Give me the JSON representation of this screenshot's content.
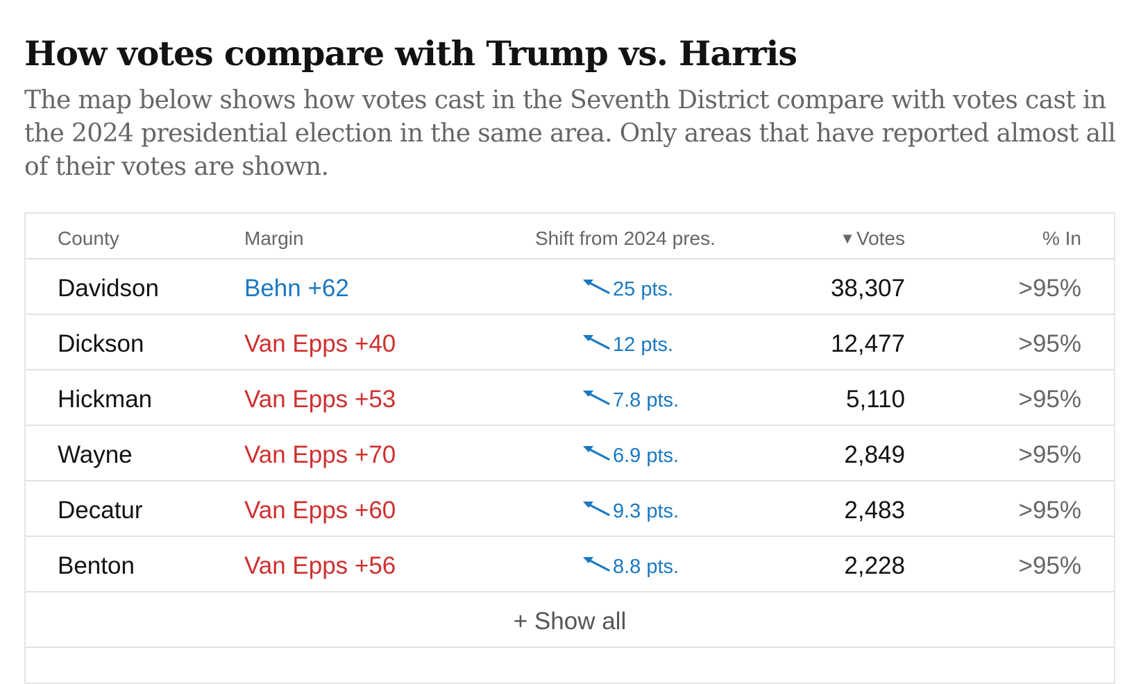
{
  "headline": "How votes compare with Trump vs. Harris",
  "dek": "The map below shows how votes cast in the Seventh District compare with votes cast in the 2024 presidential election in the same area. Only areas that have reported almost all of their votes are shown.",
  "table": {
    "headers": {
      "county": "County",
      "margin": "Margin",
      "shift": "Shift from 2024 pres.",
      "votes_sort_icon": "▼",
      "votes": "Votes",
      "pct_in": "% In"
    },
    "rows": [
      {
        "county": "Davidson",
        "margin": "Behn +62",
        "party": "dem",
        "shift": "25 pts.",
        "votes": "38,307",
        "pct_in": ">95%"
      },
      {
        "county": "Dickson",
        "margin": "Van Epps +40",
        "party": "rep",
        "shift": "12 pts.",
        "votes": "12,477",
        "pct_in": ">95%"
      },
      {
        "county": "Hickman",
        "margin": "Van Epps +53",
        "party": "rep",
        "shift": "7.8 pts.",
        "votes": "5,110",
        "pct_in": ">95%"
      },
      {
        "county": "Wayne",
        "margin": "Van Epps +70",
        "party": "rep",
        "shift": "6.9 pts.",
        "votes": "2,849",
        "pct_in": ">95%"
      },
      {
        "county": "Decatur",
        "margin": "Van Epps +60",
        "party": "rep",
        "shift": "9.3 pts.",
        "votes": "2,483",
        "pct_in": ">95%"
      },
      {
        "county": "Benton",
        "margin": "Van Epps +56",
        "party": "rep",
        "shift": "8.8 pts.",
        "votes": "2,228",
        "pct_in": ">95%"
      }
    ],
    "show_all": "+ Show all"
  },
  "colors": {
    "dem": "#1a78c2",
    "rep": "#cf2f2f",
    "shift_arrow": "#1a78c2"
  },
  "icons": {
    "shift_arrow": "arrow-up-left-icon",
    "sort": "sort-down-icon"
  }
}
